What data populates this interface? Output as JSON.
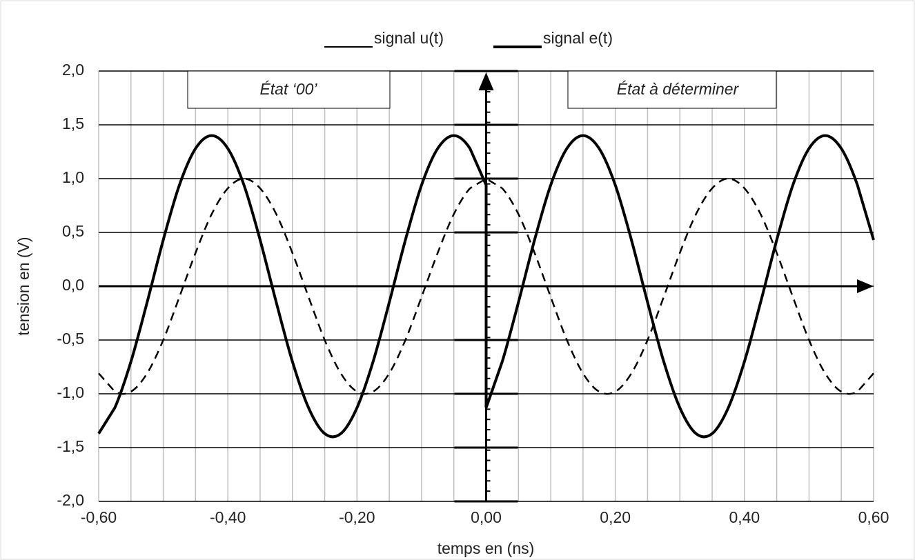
{
  "chart_data": {
    "type": "line",
    "xlabel": "temps en (ns)",
    "ylabel": "tension en (V)",
    "x": [
      -0.6,
      -0.575,
      -0.55,
      -0.525,
      -0.5,
      -0.475,
      -0.45,
      -0.425,
      -0.4,
      -0.375,
      -0.35,
      -0.325,
      -0.3,
      -0.275,
      -0.25,
      -0.225,
      -0.2,
      -0.175,
      -0.15,
      -0.125,
      -0.1,
      -0.075,
      -0.05,
      -0.025,
      0,
      0,
      0.025,
      0.05,
      0.075,
      0.1,
      0.125,
      0.15,
      0.175,
      0.2,
      0.225,
      0.25,
      0.275,
      0.3,
      0.325,
      0.35,
      0.375,
      0.4,
      0.425,
      0.45,
      0.475,
      0.5,
      0.525,
      0.55,
      0.575,
      0.6
    ],
    "series": [
      {
        "name": "signal u(t)",
        "color": "#000000",
        "style": "dashed",
        "values": [
          -0.81,
          -0.98,
          -0.98,
          -0.81,
          -0.5,
          -0.1,
          0.31,
          0.67,
          0.91,
          1,
          0.91,
          0.67,
          0.31,
          -0.1,
          -0.5,
          -0.81,
          -0.98,
          -0.98,
          -0.81,
          -0.5,
          -0.1,
          0.31,
          0.67,
          0.91,
          1,
          1,
          0.91,
          0.67,
          0.31,
          -0.1,
          -0.5,
          -0.81,
          -0.98,
          -0.98,
          -0.81,
          -0.5,
          -0.1,
          0.31,
          0.67,
          0.91,
          1,
          0.91,
          0.67,
          0.31,
          -0.1,
          -0.5,
          -0.81,
          -0.98,
          -0.98,
          -0.81
        ]
      },
      {
        "name": "signal e(t)",
        "color": "#000000",
        "style": "solid",
        "values": [
          -1.37,
          -1.13,
          -0.7,
          -0.15,
          0.43,
          0.94,
          1.28,
          1.4,
          1.28,
          0.94,
          0.43,
          -0.15,
          -0.7,
          -1.13,
          -1.37,
          -1.37,
          -1.13,
          -0.7,
          -0.15,
          0.43,
          0.94,
          1.28,
          1.4,
          1.28,
          0.94,
          -1.13,
          -0.7,
          -0.15,
          0.43,
          0.94,
          1.28,
          1.4,
          1.28,
          0.94,
          0.43,
          -0.15,
          -0.7,
          -1.13,
          -1.37,
          -1.37,
          -1.13,
          -0.7,
          -0.15,
          0.43,
          0.94,
          1.28,
          1.4,
          1.28,
          0.94,
          0.43
        ]
      }
    ],
    "xlim": [
      -0.6,
      0.6
    ],
    "ylim": [
      -2,
      2
    ],
    "xticks": [
      {
        "value": -0.6,
        "label": "-0,60"
      },
      {
        "value": -0.4,
        "label": "-0,40"
      },
      {
        "value": -0.2,
        "label": "-0,20"
      },
      {
        "value": 0,
        "label": "0,00"
      },
      {
        "value": 0.2,
        "label": "0,20"
      },
      {
        "value": 0.4,
        "label": "0,40"
      },
      {
        "value": 0.6,
        "label": "0,60"
      }
    ],
    "yticks": [
      {
        "value": -2,
        "label": "-2,0"
      },
      {
        "value": -1.5,
        "label": "-1,5"
      },
      {
        "value": -1,
        "label": "-1,0"
      },
      {
        "value": -0.5,
        "label": "-0,5"
      },
      {
        "value": 0,
        "label": "0,0"
      },
      {
        "value": 0.5,
        "label": "0,5"
      },
      {
        "value": 1,
        "label": "1,0"
      },
      {
        "value": 1.5,
        "label": "1,5"
      },
      {
        "value": 2,
        "label": "2,0"
      }
    ],
    "grid": true,
    "legend": "top",
    "annotations": [
      "État ‘00’",
      "État à déterminer"
    ]
  }
}
